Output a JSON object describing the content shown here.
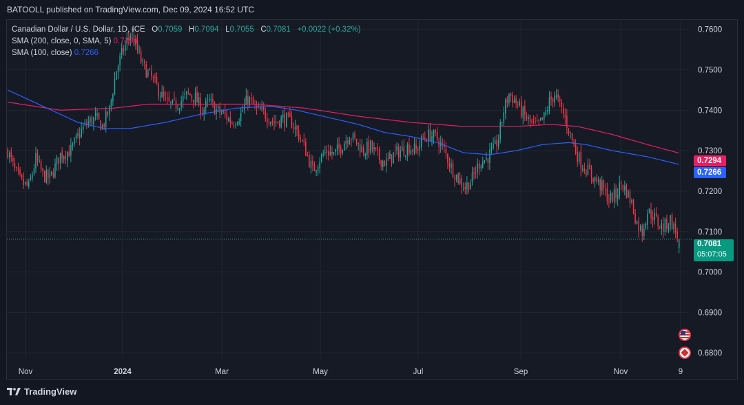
{
  "header": {
    "published": "BATOOLL published on TradingView.com, Dec 09, 2024 16:52 UTC"
  },
  "legend": {
    "symbol": "Canadian Dollar / U.S. Dollar, 1D, ICE",
    "o_label": "O",
    "o": "0.7059",
    "h_label": "H",
    "h": "0.7094",
    "l_label": "L",
    "l": "0.7055",
    "c_label": "C",
    "c": "0.7081",
    "change": "+0.0022 (+0.32%)",
    "sma200_label": "SMA (200, close, 0, SMA, 5)",
    "sma200_value": "0.7294",
    "sma100_label": "SMA (100, close)",
    "sma100_value": "0.7266"
  },
  "price_tags": {
    "sma200": "0.7294",
    "sma100": "0.7266",
    "last_price": "0.7081",
    "countdown": "05:07:05"
  },
  "footer": {
    "brand": "TradingView"
  },
  "icons": {
    "event_flag_1": "us-flag-icon",
    "event_flag_2": "canada-flag-icon"
  },
  "colors": {
    "background": "#131722",
    "up": "#26a69a",
    "down": "#f23645",
    "sma100": "#2962ff",
    "sma200": "#e91e63"
  },
  "chart_data": {
    "type": "candlestick",
    "symbol": "CADUSD",
    "interval": "1D",
    "ylim": [
      0.6785,
      0.7625
    ],
    "y_ticks": [
      "0.7600",
      "0.7500",
      "0.7400",
      "0.7300",
      "0.7200",
      "0.7100",
      "0.7000",
      "0.6900",
      "0.6800"
    ],
    "x_ticks": [
      "Nov",
      "2024",
      "Mar",
      "May",
      "Jul",
      "Sep",
      "Nov",
      "9"
    ],
    "grid": true,
    "close_path": [
      [
        0,
        0.73
      ],
      [
        4,
        0.725
      ],
      [
        8,
        0.722
      ],
      [
        12,
        0.721
      ],
      [
        16,
        0.728
      ],
      [
        20,
        0.724
      ],
      [
        24,
        0.723
      ],
      [
        30,
        0.729
      ],
      [
        36,
        0.73
      ],
      [
        42,
        0.735
      ],
      [
        46,
        0.737
      ],
      [
        50,
        0.738
      ],
      [
        54,
        0.736
      ],
      [
        58,
        0.74
      ],
      [
        62,
        0.75
      ],
      [
        66,
        0.755
      ],
      [
        70,
        0.759
      ],
      [
        73,
        0.756
      ],
      [
        77,
        0.751
      ],
      [
        82,
        0.748
      ],
      [
        86,
        0.745
      ],
      [
        90,
        0.742
      ],
      [
        94,
        0.741
      ],
      [
        98,
        0.742
      ],
      [
        103,
        0.744
      ],
      [
        107,
        0.743
      ],
      [
        111,
        0.74
      ],
      [
        115,
        0.742
      ],
      [
        119,
        0.74
      ],
      [
        123,
        0.739
      ],
      [
        128,
        0.737
      ],
      [
        133,
        0.739
      ],
      [
        137,
        0.743
      ],
      [
        142,
        0.74
      ],
      [
        147,
        0.739
      ],
      [
        152,
        0.737
      ],
      [
        157,
        0.738
      ],
      [
        162,
        0.737
      ],
      [
        166,
        0.734
      ],
      [
        170,
        0.73
      ],
      [
        174,
        0.725
      ],
      [
        178,
        0.728
      ],
      [
        182,
        0.73
      ],
      [
        186,
        0.729
      ],
      [
        190,
        0.731
      ],
      [
        195,
        0.734
      ],
      [
        199,
        0.732
      ],
      [
        203,
        0.73
      ],
      [
        207,
        0.731
      ],
      [
        212,
        0.728
      ],
      [
        216,
        0.727
      ],
      [
        220,
        0.729
      ],
      [
        224,
        0.73
      ],
      [
        229,
        0.731
      ],
      [
        233,
        0.73
      ],
      [
        237,
        0.733
      ],
      [
        241,
        0.734
      ],
      [
        245,
        0.733
      ],
      [
        249,
        0.73
      ],
      [
        253,
        0.726
      ],
      [
        257,
        0.723
      ],
      [
        261,
        0.721
      ],
      [
        265,
        0.723
      ],
      [
        269,
        0.727
      ],
      [
        273,
        0.728
      ],
      [
        277,
        0.73
      ],
      [
        280,
        0.733
      ],
      [
        283,
        0.74
      ],
      [
        286,
        0.744
      ],
      [
        290,
        0.742
      ],
      [
        294,
        0.739
      ],
      [
        298,
        0.737
      ],
      [
        302,
        0.736
      ],
      [
        306,
        0.738
      ],
      [
        309,
        0.742
      ],
      [
        312,
        0.744
      ],
      [
        315,
        0.741
      ],
      [
        318,
        0.738
      ],
      [
        321,
        0.734
      ],
      [
        324,
        0.73
      ],
      [
        327,
        0.727
      ],
      [
        331,
        0.725
      ],
      [
        335,
        0.723
      ],
      [
        339,
        0.721
      ],
      [
        343,
        0.718
      ],
      [
        347,
        0.719
      ],
      [
        350,
        0.722
      ],
      [
        353,
        0.72
      ],
      [
        356,
        0.717
      ],
      [
        359,
        0.712
      ],
      [
        362,
        0.71
      ],
      [
        365,
        0.715
      ],
      [
        368,
        0.714
      ],
      [
        371,
        0.712
      ],
      [
        374,
        0.711
      ],
      [
        378,
        0.713
      ],
      [
        381,
        0.71
      ],
      [
        383,
        0.7081
      ]
    ],
    "sma100": [
      [
        0,
        0.745
      ],
      [
        20,
        0.741
      ],
      [
        40,
        0.737
      ],
      [
        55,
        0.7355
      ],
      [
        70,
        0.7355
      ],
      [
        90,
        0.737
      ],
      [
        110,
        0.739
      ],
      [
        130,
        0.7405
      ],
      [
        150,
        0.741
      ],
      [
        165,
        0.74
      ],
      [
        180,
        0.7385
      ],
      [
        200,
        0.7365
      ],
      [
        215,
        0.7345
      ],
      [
        230,
        0.7335
      ],
      [
        245,
        0.732
      ],
      [
        260,
        0.7295
      ],
      [
        275,
        0.729
      ],
      [
        290,
        0.73
      ],
      [
        305,
        0.7315
      ],
      [
        320,
        0.732
      ],
      [
        330,
        0.7315
      ],
      [
        345,
        0.73
      ],
      [
        365,
        0.7285
      ],
      [
        383,
        0.7266
      ]
    ],
    "sma200": [
      [
        0,
        0.742
      ],
      [
        30,
        0.74
      ],
      [
        60,
        0.7405
      ],
      [
        80,
        0.7415
      ],
      [
        110,
        0.7415
      ],
      [
        140,
        0.7415
      ],
      [
        170,
        0.7405
      ],
      [
        200,
        0.7385
      ],
      [
        230,
        0.737
      ],
      [
        260,
        0.736
      ],
      [
        290,
        0.736
      ],
      [
        310,
        0.7365
      ],
      [
        325,
        0.736
      ],
      [
        345,
        0.734
      ],
      [
        365,
        0.7315
      ],
      [
        383,
        0.7294
      ]
    ],
    "last_price": 0.7081
  }
}
